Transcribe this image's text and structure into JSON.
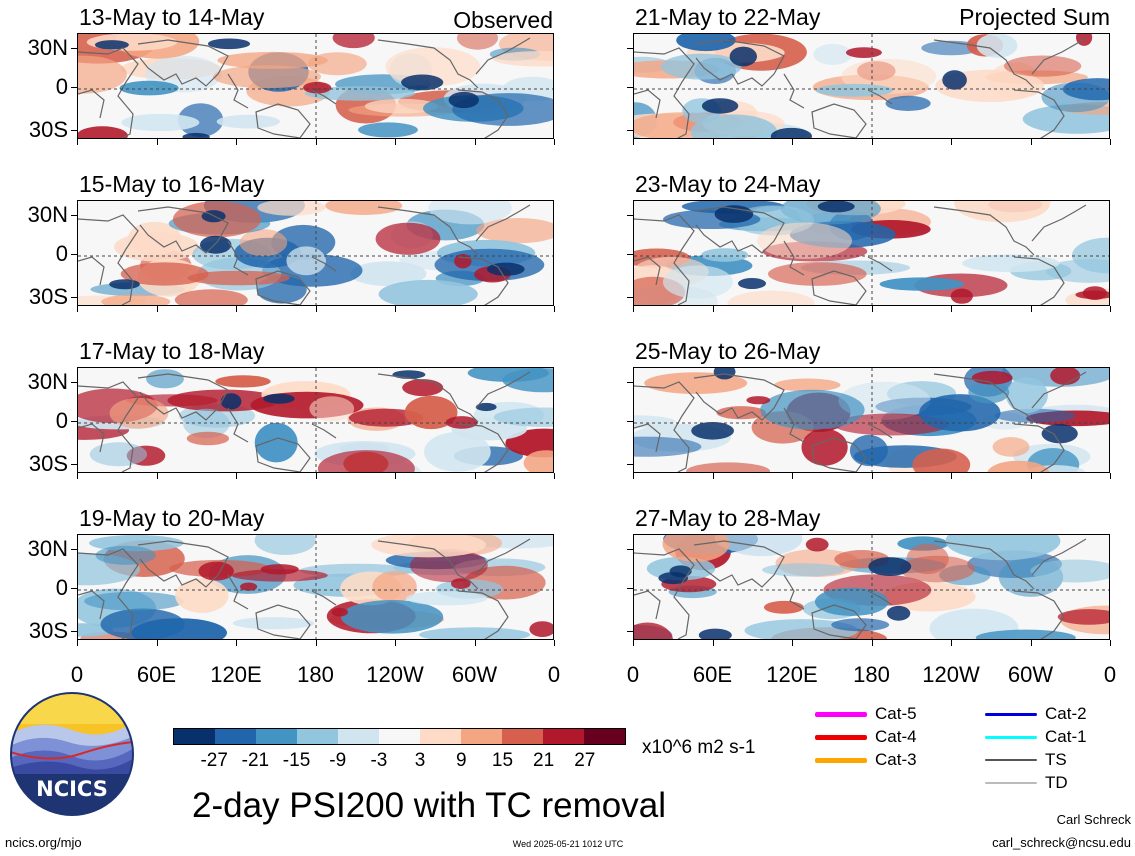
{
  "observed_label": "Observed",
  "projected_label": "Projected Sum",
  "panels_left": [
    {
      "title": "13-May to 14-May"
    },
    {
      "title": "15-May to 16-May"
    },
    {
      "title": "17-May to 18-May"
    },
    {
      "title": "19-May to 20-May"
    }
  ],
  "panels_right": [
    {
      "title": "21-May to 22-May"
    },
    {
      "title": "23-May to 24-May"
    },
    {
      "title": "25-May to 26-May"
    },
    {
      "title": "27-May to 28-May"
    }
  ],
  "y_ticks": [
    "30N",
    "0",
    "30S"
  ],
  "x_ticks": [
    "0",
    "60E",
    "120E",
    "180",
    "120W",
    "60W",
    "0"
  ],
  "colorbar": {
    "labels": [
      "-27",
      "-21",
      "-15",
      "-9",
      "-3",
      "3",
      "9",
      "15",
      "21",
      "27"
    ],
    "colors": [
      "#08306b",
      "#2166ac",
      "#4393c3",
      "#92c5de",
      "#d1e5f0",
      "#f7f7f7",
      "#fddbc7",
      "#f4a582",
      "#d6604d",
      "#b2182b",
      "#67001f"
    ],
    "units": "x10^6 m2 s-1"
  },
  "main_title": "2-day PSI200 with TC removal",
  "legend": [
    {
      "label": "Cat-5",
      "color": "#ff00ff"
    },
    {
      "label": "Cat-4",
      "color": "#ee0000"
    },
    {
      "label": "Cat-3",
      "color": "#ffa500"
    },
    {
      "label": "Cat-2",
      "color": "#0000dd"
    },
    {
      "label": "Cat-1",
      "color": "#00ffff"
    },
    {
      "label": "TS",
      "color": "#555555"
    },
    {
      "label": "TD",
      "color": "#bbbbbb"
    }
  ],
  "logo_text": "NCICS",
  "footer": {
    "site": "ncics.org/mjo",
    "timestamp": "Wed 2025-05-21 1012 UTC",
    "author": "Carl Schreck",
    "email": "carl_schreck@ncsu.edu"
  }
}
